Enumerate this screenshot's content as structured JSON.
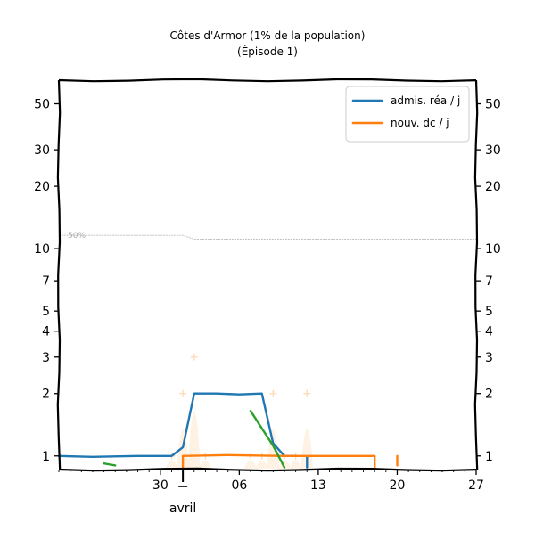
{
  "chart_data": {
    "type": "line",
    "title": "Côtes d'Armor (1% de la population)",
    "subtitle": "(Épisode 1)",
    "y_scale": "log",
    "ylim": [
      0.86,
      65
    ],
    "xlim": [
      "2020-03-21",
      "2020-04-27"
    ],
    "y_ticks": [
      1,
      2,
      3,
      4,
      5,
      7,
      10,
      20,
      30,
      50
    ],
    "y_tick_labels": [
      "1",
      "2",
      "3",
      "4",
      "5",
      "7",
      "10",
      "20",
      "30",
      "50"
    ],
    "x_ticks": [
      "2020-03-30",
      "2020-04-06",
      "2020-04-13",
      "2020-04-20",
      "2020-04-27"
    ],
    "x_tick_labels": [
      "30",
      "06",
      "13",
      "20",
      "27"
    ],
    "x_month_marker": {
      "date": "2020-04-01",
      "label": "avril"
    },
    "grid": false,
    "legend_position": "top-right",
    "colors": {
      "blue": "#1f77b4",
      "orange": "#ff7f0e",
      "green": "#2ca02c",
      "reference": "#b0b0b0",
      "raw_points": "#fdd9b5"
    },
    "reference_line": {
      "label": "50%",
      "points": [
        {
          "x": "2020-03-21",
          "y": 11.6
        },
        {
          "x": "2020-03-28",
          "y": 11.6
        },
        {
          "x": "2020-04-01",
          "y": 11.6
        },
        {
          "x": "2020-04-02",
          "y": 11.1
        },
        {
          "x": "2020-04-27",
          "y": 11.1
        }
      ]
    },
    "series": [
      {
        "name": "admis. réa / j",
        "color": "#1f77b4",
        "show_in_legend": true,
        "segments": [
          [
            {
              "x": "2020-03-21",
              "y": 1.0
            },
            {
              "x": "2020-03-24",
              "y": 0.99
            },
            {
              "x": "2020-03-28",
              "y": 1.0
            },
            {
              "x": "2020-03-31",
              "y": 1.0
            },
            {
              "x": "2020-04-01",
              "y": 1.1
            },
            {
              "x": "2020-04-02",
              "y": 2.0
            },
            {
              "x": "2020-04-04",
              "y": 2.0
            },
            {
              "x": "2020-04-06",
              "y": 1.98
            },
            {
              "x": "2020-04-08",
              "y": 2.0
            },
            {
              "x": "2020-04-09",
              "y": 1.15
            },
            {
              "x": "2020-04-10",
              "y": 1.0
            },
            {
              "x": "2020-04-11",
              "y": 1.0
            }
          ],
          [
            {
              "x": "2020-04-12",
              "y": 0.99
            },
            {
              "x": "2020-04-12",
              "y": 0.88
            }
          ]
        ]
      },
      {
        "name": "nouv. dc / j",
        "color": "#ff7f0e",
        "show_in_legend": true,
        "segments": [
          [
            {
              "x": "2020-04-01",
              "y": 0.88
            },
            {
              "x": "2020-04-01",
              "y": 1.0
            },
            {
              "x": "2020-04-05",
              "y": 1.01
            },
            {
              "x": "2020-04-10",
              "y": 1.0
            },
            {
              "x": "2020-04-15",
              "y": 1.0
            },
            {
              "x": "2020-04-18",
              "y": 1.0
            },
            {
              "x": "2020-04-18",
              "y": 0.88
            }
          ],
          [
            {
              "x": "2020-04-20",
              "y": 0.9
            },
            {
              "x": "2020-04-20",
              "y": 1.0
            }
          ]
        ]
      },
      {
        "name": "",
        "color": "#2ca02c",
        "show_in_legend": false,
        "segments": [
          [
            {
              "x": "2020-03-25",
              "y": 0.92
            },
            {
              "x": "2020-03-26",
              "y": 0.9
            }
          ],
          [
            {
              "x": "2020-04-07",
              "y": 1.65
            },
            {
              "x": "2020-04-09",
              "y": 1.12
            },
            {
              "x": "2020-04-10",
              "y": 0.88
            }
          ]
        ]
      }
    ],
    "raw_points": [
      {
        "x": "2020-03-31",
        "y": 1.0
      },
      {
        "x": "2020-04-01",
        "y": 2.0
      },
      {
        "x": "2020-04-02",
        "y": 3.0
      },
      {
        "x": "2020-04-03",
        "y": 1.0
      },
      {
        "x": "2020-04-07",
        "y": 1.0
      },
      {
        "x": "2020-04-08",
        "y": 1.0
      },
      {
        "x": "2020-04-09",
        "y": 2.0
      },
      {
        "x": "2020-04-10",
        "y": 1.0
      },
      {
        "x": "2020-04-11",
        "y": 1.0
      },
      {
        "x": "2020-04-12",
        "y": 2.0
      }
    ]
  }
}
